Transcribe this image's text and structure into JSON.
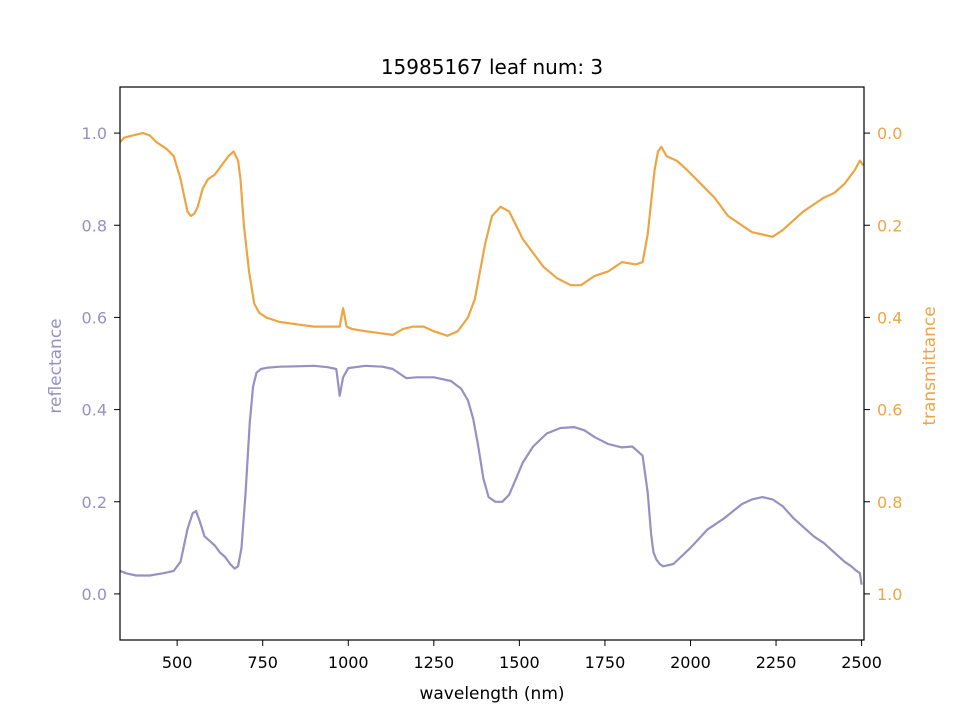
{
  "chart_data": {
    "type": "line",
    "title": "15985167 leaf num: 3",
    "xlabel": "wavelength (nm)",
    "ylabel_left": "reflectance",
    "ylabel_right": "transmittance",
    "xlim": [
      333,
      2507
    ],
    "ylim_left": [
      -0.1,
      1.1
    ],
    "ylim_right": [
      1.1,
      -0.1
    ],
    "right_axis_inverted": true,
    "grid": false,
    "x_ticks": [
      "500",
      "750",
      "1000",
      "1250",
      "1500",
      "1750",
      "2000",
      "2250",
      "2500"
    ],
    "y_ticks_left": [
      "0.0",
      "0.2",
      "0.4",
      "0.6",
      "0.8",
      "1.0"
    ],
    "y_ticks_right": [
      "0.0",
      "0.2",
      "0.4",
      "0.6",
      "0.8",
      "1.0"
    ],
    "colors": {
      "reflectance": "#9691c2",
      "transmittance": "#eda544"
    },
    "series": [
      {
        "key": "reflectance",
        "axis": "left",
        "x": [
          333,
          350,
          380,
          420,
          460,
          490,
          510,
          530,
          545,
          555,
          565,
          580,
          595,
          610,
          625,
          640,
          655,
          668,
          678,
          688,
          700,
          712,
          722,
          732,
          745,
          765,
          800,
          850,
          900,
          940,
          965,
          975,
          985,
          1000,
          1050,
          1100,
          1130,
          1150,
          1170,
          1200,
          1250,
          1300,
          1330,
          1350,
          1365,
          1380,
          1395,
          1410,
          1430,
          1450,
          1470,
          1490,
          1510,
          1540,
          1580,
          1620,
          1660,
          1690,
          1720,
          1760,
          1800,
          1830,
          1860,
          1875,
          1885,
          1892,
          1900,
          1910,
          1920,
          1950,
          2000,
          2050,
          2100,
          2150,
          2180,
          2210,
          2240,
          2270,
          2300,
          2330,
          2360,
          2390,
          2420,
          2450,
          2470,
          2485,
          2495,
          2500
        ],
        "y": [
          0.05,
          0.045,
          0.04,
          0.04,
          0.045,
          0.05,
          0.07,
          0.14,
          0.175,
          0.18,
          0.16,
          0.125,
          0.115,
          0.105,
          0.09,
          0.08,
          0.065,
          0.055,
          0.06,
          0.1,
          0.22,
          0.37,
          0.45,
          0.48,
          0.488,
          0.491,
          0.493,
          0.494,
          0.495,
          0.492,
          0.488,
          0.43,
          0.47,
          0.49,
          0.495,
          0.493,
          0.488,
          0.478,
          0.468,
          0.47,
          0.47,
          0.462,
          0.445,
          0.42,
          0.38,
          0.32,
          0.25,
          0.21,
          0.2,
          0.2,
          0.215,
          0.25,
          0.285,
          0.32,
          0.348,
          0.36,
          0.362,
          0.355,
          0.34,
          0.325,
          0.318,
          0.32,
          0.3,
          0.22,
          0.13,
          0.09,
          0.075,
          0.065,
          0.06,
          0.065,
          0.1,
          0.14,
          0.165,
          0.195,
          0.205,
          0.21,
          0.205,
          0.19,
          0.165,
          0.145,
          0.125,
          0.11,
          0.09,
          0.07,
          0.06,
          0.05,
          0.045,
          0.02
        ]
      },
      {
        "key": "transmittance",
        "axis": "right",
        "x": [
          333,
          345,
          370,
          400,
          420,
          440,
          470,
          490,
          510,
          530,
          540,
          550,
          560,
          575,
          590,
          610,
          630,
          650,
          665,
          678,
          685,
          695,
          710,
          725,
          740,
          760,
          800,
          850,
          900,
          950,
          975,
          985,
          995,
          1010,
          1050,
          1100,
          1130,
          1160,
          1190,
          1220,
          1250,
          1290,
          1320,
          1350,
          1370,
          1385,
          1400,
          1420,
          1445,
          1470,
          1490,
          1510,
          1540,
          1570,
          1610,
          1650,
          1680,
          1720,
          1760,
          1800,
          1840,
          1860,
          1875,
          1885,
          1895,
          1905,
          1915,
          1930,
          1960,
          1990,
          2030,
          2070,
          2110,
          2150,
          2180,
          2210,
          2240,
          2270,
          2300,
          2330,
          2360,
          2390,
          2420,
          2450,
          2480,
          2495,
          2505
        ],
        "y": [
          0.02,
          0.01,
          0.005,
          0.0,
          0.005,
          0.02,
          0.035,
          0.05,
          0.1,
          0.17,
          0.18,
          0.175,
          0.16,
          0.12,
          0.1,
          0.09,
          0.07,
          0.05,
          0.04,
          0.06,
          0.1,
          0.2,
          0.3,
          0.37,
          0.39,
          0.4,
          0.41,
          0.415,
          0.42,
          0.42,
          0.42,
          0.38,
          0.42,
          0.425,
          0.43,
          0.435,
          0.438,
          0.425,
          0.42,
          0.42,
          0.43,
          0.44,
          0.43,
          0.4,
          0.36,
          0.3,
          0.24,
          0.18,
          0.16,
          0.17,
          0.2,
          0.23,
          0.26,
          0.29,
          0.315,
          0.33,
          0.33,
          0.31,
          0.3,
          0.28,
          0.285,
          0.28,
          0.22,
          0.15,
          0.08,
          0.04,
          0.03,
          0.05,
          0.06,
          0.08,
          0.11,
          0.14,
          0.18,
          0.2,
          0.215,
          0.22,
          0.225,
          0.21,
          0.19,
          0.17,
          0.155,
          0.14,
          0.13,
          0.11,
          0.08,
          0.06,
          0.07
        ]
      }
    ]
  }
}
